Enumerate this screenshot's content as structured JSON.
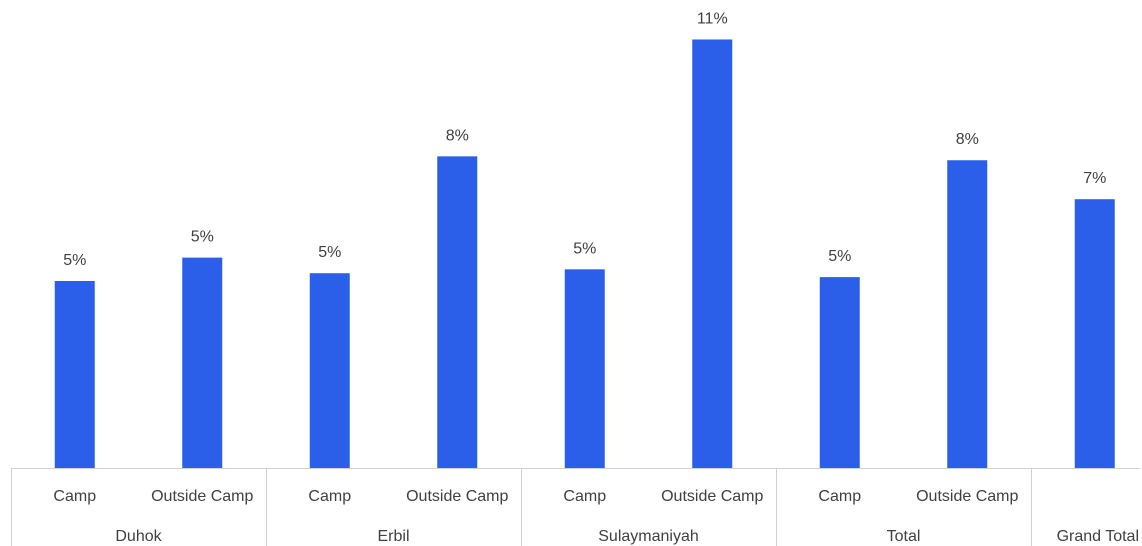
{
  "chart_data": {
    "type": "bar",
    "title": "",
    "xlabel": "",
    "ylabel": "",
    "groups": [
      {
        "name": "Duhok",
        "categories": [
          "Camp",
          "Outside Camp"
        ]
      },
      {
        "name": "Erbil",
        "categories": [
          "Camp",
          "Outside Camp"
        ]
      },
      {
        "name": "Sulaymaniyah",
        "categories": [
          "Camp",
          "Outside Camp"
        ]
      },
      {
        "name": "Total",
        "categories": [
          "Camp",
          "Outside Camp"
        ]
      },
      {
        "name": "Grand Total",
        "categories": [
          ""
        ]
      }
    ],
    "series": [
      {
        "values": [
          0.048,
          0.054,
          0.05,
          0.08,
          0.051,
          0.11,
          0.049,
          0.079,
          0.069
        ],
        "data_labels": [
          "5%",
          "5%",
          "5%",
          "8%",
          "5%",
          "11%",
          "5%",
          "8%",
          "7%"
        ]
      }
    ],
    "ylim": [
      0,
      0.115
    ],
    "grid": false,
    "legend": "none",
    "bar_color": "#2b5fea"
  }
}
